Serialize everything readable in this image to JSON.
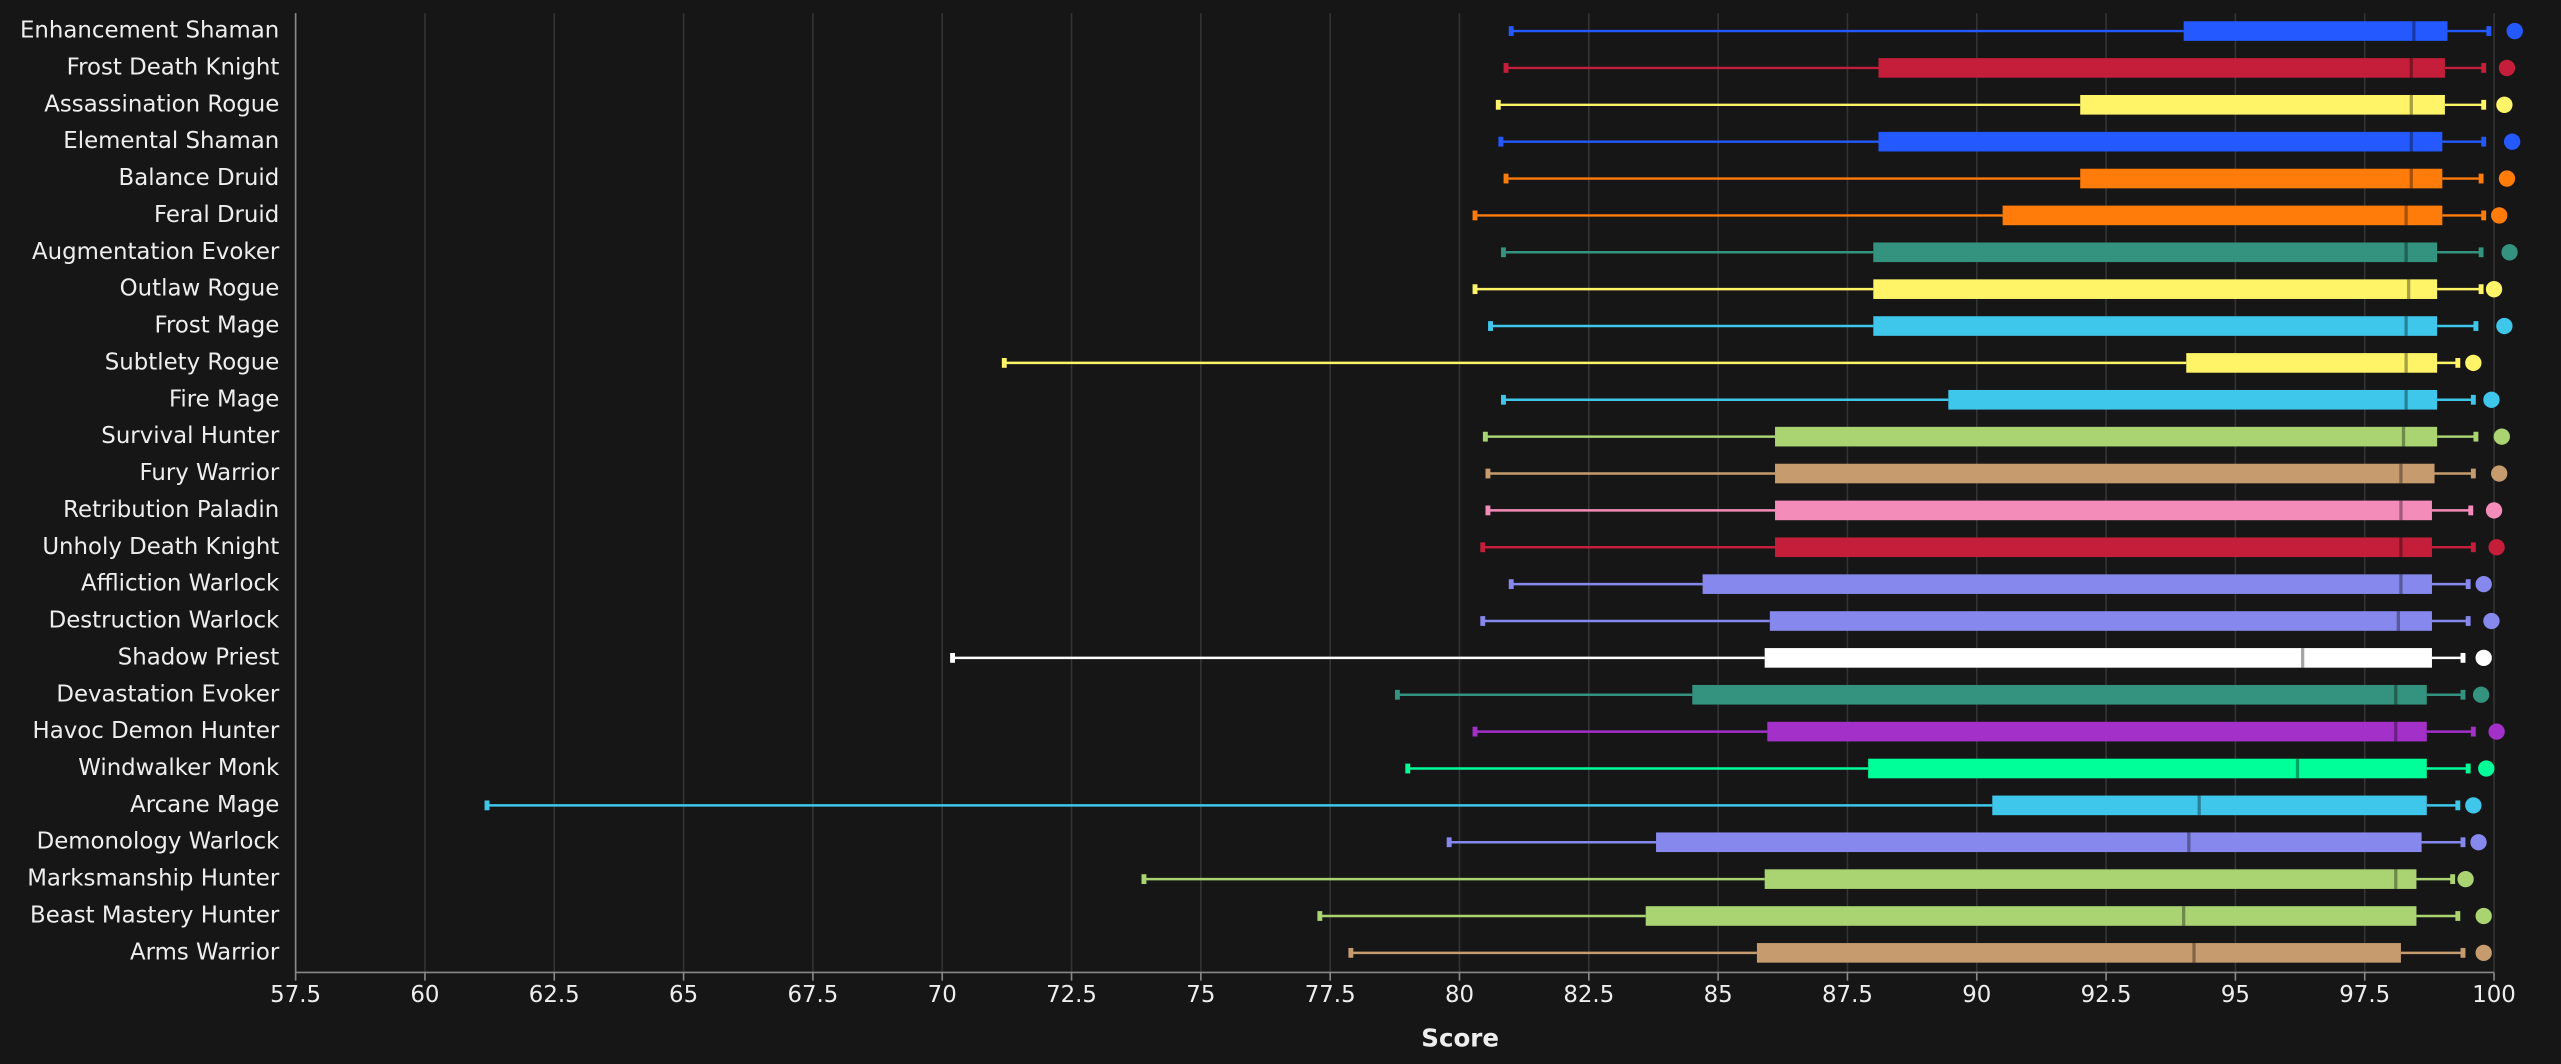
{
  "chart_data": {
    "type": "boxplot",
    "x_label": "Score",
    "xlim": [
      57.5,
      100
    ],
    "xticks": [
      57.5,
      60,
      62.5,
      65,
      67.5,
      70,
      72.5,
      75,
      77.5,
      80,
      82.5,
      85,
      87.5,
      90,
      92.5,
      95,
      97.5,
      100
    ],
    "grid": true,
    "series": [
      {
        "name": "Enhancement Shaman",
        "color": "#2459ff",
        "values": [
          81.0,
          94.0,
          98.45,
          99.1,
          99.9,
          100.4
        ]
      },
      {
        "name": "Frost Death Knight",
        "color": "#c41e3a",
        "values": [
          80.9,
          88.1,
          98.4,
          99.05,
          99.8,
          100.25
        ]
      },
      {
        "name": "Assassination Rogue",
        "color": "#fff468",
        "values": [
          80.75,
          92.0,
          98.4,
          99.05,
          99.8,
          100.2
        ]
      },
      {
        "name": "Elemental Shaman",
        "color": "#2459ff",
        "values": [
          80.8,
          88.1,
          98.4,
          99.0,
          99.8,
          100.35
        ]
      },
      {
        "name": "Balance Druid",
        "color": "#ff7c0a",
        "values": [
          80.9,
          92.0,
          98.4,
          99.0,
          99.75,
          100.25
        ]
      },
      {
        "name": "Feral Druid",
        "color": "#ff7c0a",
        "values": [
          80.3,
          90.5,
          98.3,
          99.0,
          99.8,
          100.1
        ]
      },
      {
        "name": "Augmentation Evoker",
        "color": "#33937f",
        "values": [
          80.85,
          88.0,
          98.3,
          98.9,
          99.75,
          100.3
        ]
      },
      {
        "name": "Outlaw Rogue",
        "color": "#fff468",
        "values": [
          80.3,
          88.0,
          98.35,
          98.9,
          99.75,
          100.0
        ]
      },
      {
        "name": "Frost Mage",
        "color": "#3fc7eb",
        "values": [
          80.6,
          88.0,
          98.3,
          98.9,
          99.65,
          100.2
        ]
      },
      {
        "name": "Subtlety Rogue",
        "color": "#fff468",
        "values": [
          71.2,
          94.05,
          98.3,
          98.9,
          99.3,
          99.6
        ]
      },
      {
        "name": "Fire Mage",
        "color": "#3fc7eb",
        "values": [
          80.85,
          89.45,
          98.3,
          98.9,
          99.6,
          99.95
        ]
      },
      {
        "name": "Survival Hunter",
        "color": "#aad372",
        "values": [
          80.5,
          86.1,
          98.25,
          98.9,
          99.65,
          100.15
        ]
      },
      {
        "name": "Fury Warrior",
        "color": "#c69b6d",
        "values": [
          80.55,
          86.1,
          98.2,
          98.85,
          99.6,
          100.1
        ]
      },
      {
        "name": "Retribution Paladin",
        "color": "#f48cba",
        "values": [
          80.55,
          86.1,
          98.2,
          98.8,
          99.55,
          100.0
        ]
      },
      {
        "name": "Unholy Death Knight",
        "color": "#c41e3a",
        "values": [
          80.45,
          86.1,
          98.2,
          98.8,
          99.6,
          100.05
        ]
      },
      {
        "name": "Affliction Warlock",
        "color": "#8788ee",
        "values": [
          81.0,
          84.7,
          98.2,
          98.8,
          99.5,
          99.8
        ]
      },
      {
        "name": "Destruction Warlock",
        "color": "#8788ee",
        "values": [
          80.45,
          86.0,
          98.15,
          98.8,
          99.5,
          99.95
        ]
      },
      {
        "name": "Shadow Priest",
        "color": "#ffffff",
        "values": [
          70.2,
          85.9,
          96.3,
          98.8,
          99.4,
          99.8
        ]
      },
      {
        "name": "Devastation Evoker",
        "color": "#33937f",
        "values": [
          78.8,
          84.5,
          98.1,
          98.7,
          99.4,
          99.75
        ]
      },
      {
        "name": "Havoc Demon Hunter",
        "color": "#a330c9",
        "values": [
          80.3,
          85.95,
          98.1,
          98.7,
          99.6,
          100.05
        ]
      },
      {
        "name": "Windwalker Monk",
        "color": "#00ff98",
        "values": [
          79.0,
          87.9,
          96.2,
          98.7,
          99.5,
          99.85
        ]
      },
      {
        "name": "Arcane Mage",
        "color": "#3fc7eb",
        "values": [
          61.2,
          90.3,
          94.3,
          98.7,
          99.3,
          99.6
        ]
      },
      {
        "name": "Demonology Warlock",
        "color": "#8788ee",
        "values": [
          79.8,
          83.8,
          94.1,
          98.6,
          99.4,
          99.7
        ]
      },
      {
        "name": "Marksmanship Hunter",
        "color": "#aad372",
        "values": [
          73.9,
          85.9,
          98.1,
          98.5,
          99.2,
          99.45
        ]
      },
      {
        "name": "Beast Mastery Hunter",
        "color": "#aad372",
        "values": [
          77.3,
          83.6,
          94.0,
          98.5,
          99.3,
          99.8
        ]
      },
      {
        "name": "Arms Warrior",
        "color": "#c69b6d",
        "values": [
          77.9,
          85.75,
          94.2,
          98.2,
          99.4,
          99.8
        ]
      }
    ]
  }
}
